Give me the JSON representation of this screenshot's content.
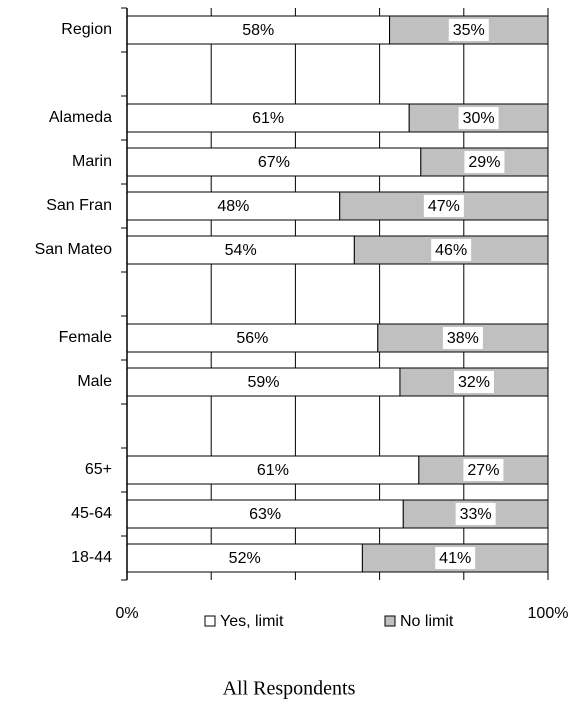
{
  "chart_data": {
    "type": "bar",
    "orientation": "horizontal",
    "stacked": "percent",
    "title": "All Respondents",
    "categories": [
      "Region",
      null,
      "Alameda",
      "Marin",
      "San Fran",
      "San Mateo",
      null,
      "Female",
      "Male",
      null,
      "65+",
      "45-64",
      "18-44"
    ],
    "series": [
      {
        "name": "Yes, limit",
        "color": "#ffffff",
        "values": [
          58,
          null,
          61,
          67,
          48,
          54,
          null,
          56,
          59,
          null,
          61,
          63,
          52
        ],
        "value_labels": [
          "58%",
          null,
          "61%",
          "67%",
          "48%",
          "54%",
          null,
          "56%",
          "59%",
          null,
          "61%",
          "63%",
          "52%"
        ]
      },
      {
        "name": "No limit",
        "color": "#c0c0c0",
        "values": [
          35,
          null,
          30,
          29,
          47,
          46,
          null,
          38,
          32,
          null,
          27,
          33,
          41
        ],
        "value_labels": [
          "35%",
          null,
          "30%",
          "29%",
          "47%",
          "46%",
          null,
          "38%",
          "32%",
          null,
          "27%",
          "33%",
          "41%"
        ]
      }
    ],
    "xlim": [
      0,
      100
    ],
    "xticks": [
      {
        "value": 0,
        "label": "0%"
      },
      {
        "value": 100,
        "label": "100%"
      }
    ],
    "xgrid": [
      20,
      40,
      60,
      80
    ],
    "legend": "bottom"
  }
}
